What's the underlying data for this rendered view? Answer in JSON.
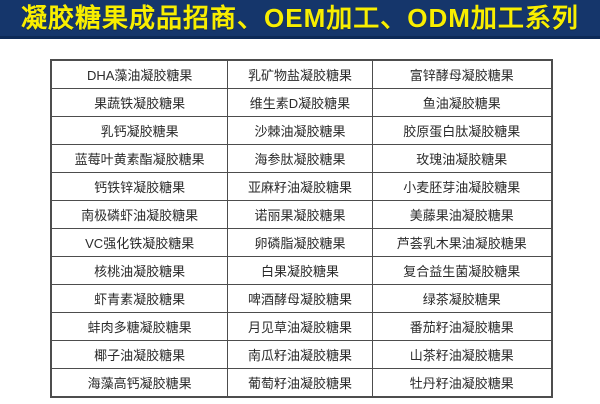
{
  "banner": {
    "title": "凝胶糖果成品招商、OEM加工、ODM加工系列"
  },
  "colors": {
    "banner_bg": "#15366b",
    "banner_edge": "#0d2a57",
    "banner_text": "#f8ee00",
    "table_border": "#4d4d4d",
    "cell_text": "#2b2b2b",
    "page_bg": "#ffffff"
  },
  "table": {
    "columns_width_percent": [
      35.3,
      28.8,
      35.9
    ],
    "rows": [
      [
        "DHA藻油凝胶糖果",
        "乳矿物盐凝胶糖果",
        "富锌酵母凝胶糖果"
      ],
      [
        "果蔬铁凝胶糖果",
        "维生素D凝胶糖果",
        "鱼油凝胶糖果"
      ],
      [
        "乳钙凝胶糖果",
        "沙棘油凝胶糖果",
        "胶原蛋白肽凝胶糖果"
      ],
      [
        "蓝莓叶黄素酯凝胶糖果",
        "海参肽凝胶糖果",
        "玫瑰油凝胶糖果"
      ],
      [
        "钙铁锌凝胶糖果",
        "亚麻籽油凝胶糖果",
        "小麦胚芽油凝胶糖果"
      ],
      [
        "南极磷虾油凝胶糖果",
        "诺丽果凝胶糖果",
        "美藤果油凝胶糖果"
      ],
      [
        "VC强化铁凝胶糖果",
        "卵磷脂凝胶糖果",
        "芦荟乳木果油凝胶糖果"
      ],
      [
        "核桃油凝胶糖果",
        "白果凝胶糖果",
        "复合益生菌凝胶糖果"
      ],
      [
        "虾青素凝胶糖果",
        "啤酒酵母凝胶糖果",
        "绿茶凝胶糖果"
      ],
      [
        "蚌肉多糖凝胶糖果",
        "月见草油凝胶糖果",
        "番茄籽油凝胶糖果"
      ],
      [
        "椰子油凝胶糖果",
        "南瓜籽油凝胶糖果",
        "山茶籽油凝胶糖果"
      ],
      [
        "海藻高钙凝胶糖果",
        "葡萄籽油凝胶糖果",
        "牡丹籽油凝胶糖果"
      ]
    ]
  }
}
